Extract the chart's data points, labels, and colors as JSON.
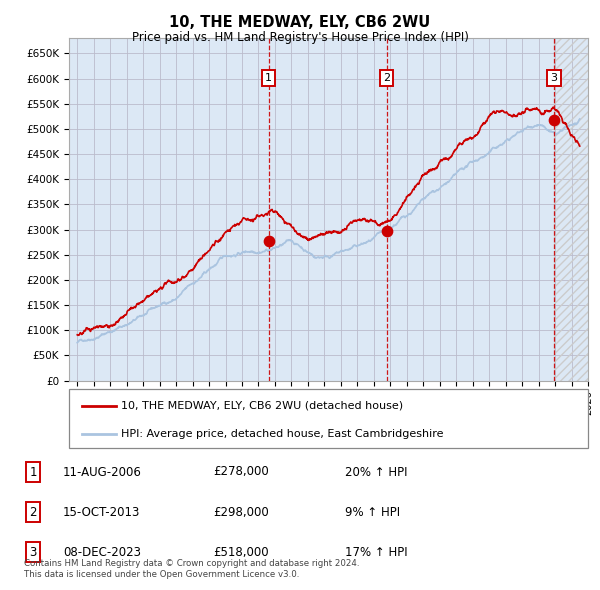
{
  "title": "10, THE MEDWAY, ELY, CB6 2WU",
  "subtitle": "Price paid vs. HM Land Registry's House Price Index (HPI)",
  "x_start_year": 1995,
  "x_end_year": 2026,
  "y_min": 0,
  "y_max": 680000,
  "y_ticks": [
    0,
    50000,
    100000,
    150000,
    200000,
    250000,
    300000,
    350000,
    400000,
    450000,
    500000,
    550000,
    600000,
    650000
  ],
  "hpi_color": "#aac4e0",
  "price_color": "#cc0000",
  "bg_plot_color": "#dce8f5",
  "grid_color": "#bbbbcc",
  "sale_dates": [
    2006.617,
    2013.789,
    2023.936
  ],
  "sale_prices": [
    278000,
    298000,
    518000
  ],
  "sale_labels": [
    "1",
    "2",
    "3"
  ],
  "footnote1": "Contains HM Land Registry data © Crown copyright and database right 2024.",
  "footnote2": "This data is licensed under the Open Government Licence v3.0.",
  "legend_line1": "10, THE MEDWAY, ELY, CB6 2WU (detached house)",
  "legend_line2": "HPI: Average price, detached house, East Cambridgeshire",
  "table": [
    {
      "label": "1",
      "date": "11-AUG-2006",
      "price": "£278,000",
      "change": "20% ↑ HPI"
    },
    {
      "label": "2",
      "date": "15-OCT-2013",
      "price": "£298,000",
      "change": "9% ↑ HPI"
    },
    {
      "label": "3",
      "date": "08-DEC-2023",
      "price": "£518,000",
      "change": "17% ↑ HPI"
    }
  ]
}
